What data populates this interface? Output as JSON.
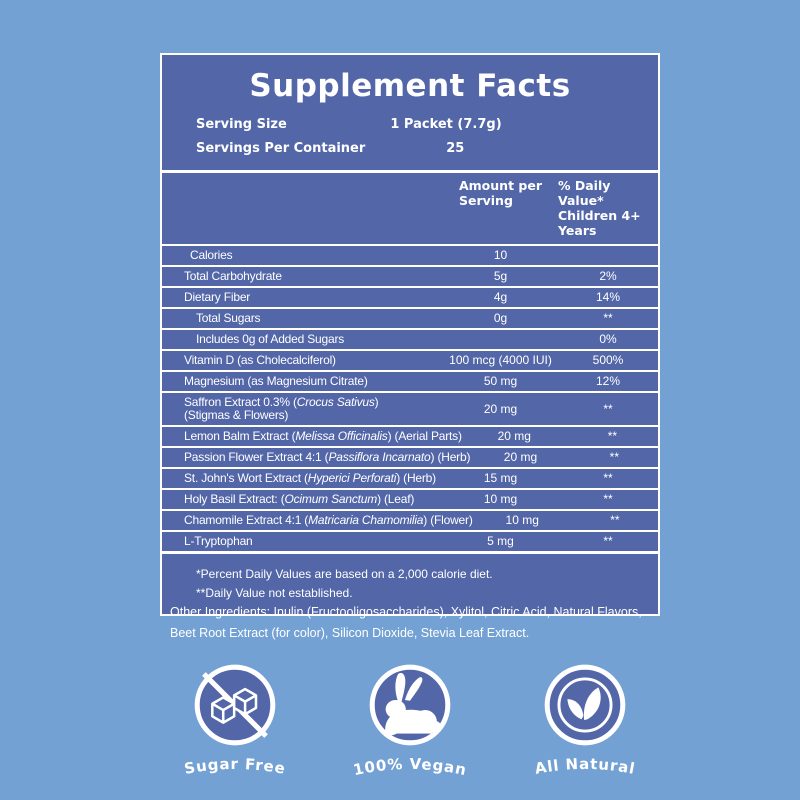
{
  "colors": {
    "background": "#74a1d4",
    "panel": "#5266a8",
    "white": "#ffffff"
  },
  "label": {
    "title": "Supplement Facts",
    "serving_rows": [
      {
        "label": "Serving Size",
        "value": "1 Packet (7.7g)"
      },
      {
        "label": "Servings Per Container",
        "value": "25"
      }
    ],
    "columns": {
      "amount": "Amount per\nServing",
      "daily_value": "% Daily Value*\nChildren 4+ Years"
    },
    "rows": [
      {
        "name": [
          {
            "t": "Calories"
          }
        ],
        "amount": "10",
        "dv": "",
        "indent": 1
      },
      {
        "name": [
          {
            "t": "Total Carbohydrate"
          }
        ],
        "amount": "5g",
        "dv": "2%",
        "indent": 0
      },
      {
        "name": [
          {
            "t": "Dietary Fiber"
          }
        ],
        "amount": "4g",
        "dv": "14%",
        "indent": 0
      },
      {
        "name": [
          {
            "t": "Total Sugars"
          }
        ],
        "amount": "0g",
        "dv": "**",
        "indent": 2
      },
      {
        "name": [
          {
            "t": "Includes 0g of Added Sugars"
          }
        ],
        "amount": "",
        "dv": "0%",
        "indent": 2
      },
      {
        "name": [
          {
            "t": "Vitamin D (as Cholecalciferol)"
          }
        ],
        "amount": "100 mcg (4000 IUI)",
        "dv": "500%",
        "indent": 0
      },
      {
        "name": [
          {
            "t": "Magnesium (as Magnesium Citrate)"
          }
        ],
        "amount": "50 mg",
        "dv": "12%",
        "indent": 0
      },
      {
        "name": [
          {
            "t": "Saffron Extract 0.3% ("
          },
          {
            "t": "Crocus Sativus",
            "i": true
          },
          {
            "t": ")"
          },
          {
            "br": true
          },
          {
            "t": "(Stigmas & Flowers)"
          }
        ],
        "amount": "20 mg",
        "dv": "**",
        "indent": 0
      },
      {
        "name": [
          {
            "t": "Lemon Balm Extract ("
          },
          {
            "t": "Melissa Officinalis",
            "i": true
          },
          {
            "t": ") (Aerial Parts)"
          }
        ],
        "amount": "20 mg",
        "dv": "**",
        "indent": 0
      },
      {
        "name": [
          {
            "t": "Passion Flower Extract 4:1 ("
          },
          {
            "t": "Passiflora Incarnato",
            "i": true
          },
          {
            "t": ") (Herb)"
          }
        ],
        "amount": "20 mg",
        "dv": "**",
        "indent": 0
      },
      {
        "name": [
          {
            "t": "St. John's Wort Extract ("
          },
          {
            "t": "Hyperici Perforati",
            "i": true
          },
          {
            "t": ") (Herb)"
          }
        ],
        "amount": "15 mg",
        "dv": "**",
        "indent": 0
      },
      {
        "name": [
          {
            "t": "Holy Basil Extract: ("
          },
          {
            "t": "Ocimum Sanctum",
            "i": true
          },
          {
            "t": ") (Leaf)"
          }
        ],
        "amount": "10 mg",
        "dv": "**",
        "indent": 0
      },
      {
        "name": [
          {
            "t": "Chamomile Extract 4:1 ("
          },
          {
            "t": "Matricaria Chamomilia",
            "i": true
          },
          {
            "t": ") (Flower)"
          }
        ],
        "amount": "10 mg",
        "dv": "**",
        "indent": 0
      },
      {
        "name": [
          {
            "t": "L-Tryptophan"
          }
        ],
        "amount": "5 mg",
        "dv": "**",
        "indent": 0
      }
    ],
    "footnotes": [
      "*Percent Daily Values are based on a 2,000 calorie diet.",
      "**Daily Value not established."
    ]
  },
  "other_ingredients_lines": [
    "Other Ingredients: Inulin (Fructooligosaccharides), Xylitol, Citric Acid, Natural Flavors,",
    "Beet Root Extract (for color), Silicon Dioxide, Stevia Leaf Extract."
  ],
  "badges": [
    {
      "label": "Sugar Free",
      "icon": "sugar-free-icon"
    },
    {
      "label": "100% Vegan",
      "icon": "vegan-rabbit-icon"
    },
    {
      "label": "All Natural",
      "icon": "all-natural-leaf-icon"
    }
  ]
}
